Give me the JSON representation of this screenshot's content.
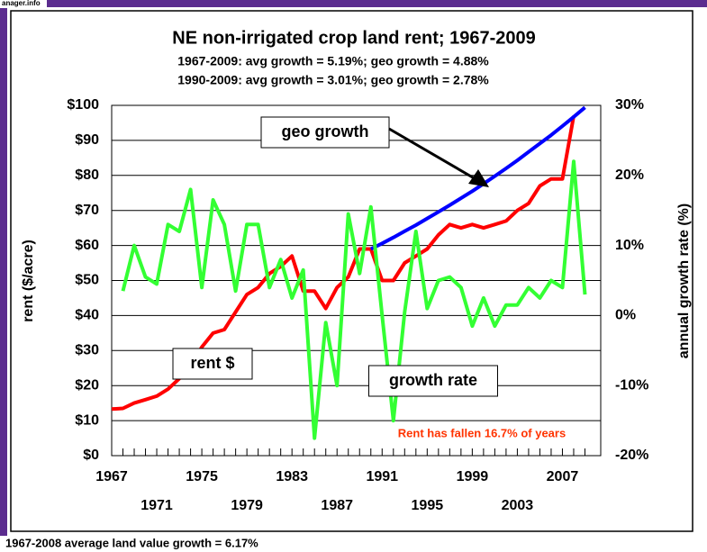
{
  "brand": "anager.info",
  "footer": "1967-2008 average land value growth = 6.17%",
  "chart_data": {
    "type": "line",
    "title": "NE non-irrigated crop land rent; 1967-2009",
    "subtitles": [
      "1967-2009:  avg growth = 5.19%;  geo growth = 4.88%",
      "1990-2009:  avg growth = 3.01%;  geo growth = 2.78%"
    ],
    "y_label": "rent ($/acre)",
    "y2_label": "annual growth rate (%)",
    "annotation": "Rent has fallen 16.7% of years",
    "x": [
      1967,
      1968,
      1969,
      1970,
      1971,
      1972,
      1973,
      1974,
      1975,
      1976,
      1977,
      1978,
      1979,
      1980,
      1981,
      1982,
      1983,
      1984,
      1985,
      1986,
      1987,
      1988,
      1989,
      1990,
      1991,
      1992,
      1993,
      1994,
      1995,
      1996,
      1997,
      1998,
      1999,
      2000,
      2001,
      2002,
      2003,
      2004,
      2005,
      2006,
      2007,
      2008,
      2009
    ],
    "xlim": [
      1967,
      2010.4
    ],
    "xticks": [
      1967,
      1971,
      1975,
      1979,
      1983,
      1987,
      1991,
      1995,
      1999,
      2003,
      2007
    ],
    "ylim": [
      0,
      100
    ],
    "yticks": [
      {
        "value": 0,
        "label": "$0"
      },
      {
        "value": 10,
        "label": "$10"
      },
      {
        "value": 20,
        "label": "$20"
      },
      {
        "value": 30,
        "label": "$30"
      },
      {
        "value": 40,
        "label": "$40"
      },
      {
        "value": 50,
        "label": "$50"
      },
      {
        "value": 60,
        "label": "$60"
      },
      {
        "value": 70,
        "label": "$70"
      },
      {
        "value": 80,
        "label": "$80"
      },
      {
        "value": 90,
        "label": "$90"
      },
      {
        "value": 100,
        "label": "$100"
      }
    ],
    "y2lim": [
      -20,
      30
    ],
    "y2ticks": [
      {
        "value": -20,
        "label": "-20%"
      },
      {
        "value": -10,
        "label": "-10%"
      },
      {
        "value": 0,
        "label": "0%"
      },
      {
        "value": 10,
        "label": "10%"
      },
      {
        "value": 20,
        "label": "20%"
      },
      {
        "value": 30,
        "label": "30%"
      }
    ],
    "grid": true,
    "series": [
      {
        "name": "rent $",
        "color": "#ff0000",
        "values": [
          13.3,
          13.5,
          15,
          16,
          17,
          19,
          22,
          26,
          31,
          35,
          36,
          41,
          46,
          48,
          52,
          54,
          57,
          47,
          47,
          42,
          48,
          51,
          59,
          59,
          50,
          50,
          55,
          57,
          59,
          63,
          66,
          65,
          66,
          65,
          66,
          67,
          70,
          72,
          77,
          79,
          79,
          97,
          null
        ]
      },
      {
        "name": "geo growth",
        "color": "#0000ff",
        "values": [
          null,
          null,
          null,
          null,
          null,
          null,
          null,
          null,
          null,
          null,
          null,
          null,
          null,
          null,
          null,
          null,
          null,
          null,
          null,
          null,
          null,
          null,
          null,
          59,
          60.6,
          62.3,
          64.1,
          65.8,
          67.7,
          69.6,
          71.5,
          73.5,
          75.5,
          77.6,
          79.8,
          82,
          84.3,
          86.7,
          89.1,
          91.5,
          94.1,
          96.7,
          99.4
        ]
      },
      {
        "name": "growth rate",
        "color": "#33ff33",
        "axis": "y2",
        "values": [
          null,
          3.5,
          10,
          5.5,
          4.5,
          13,
          12,
          18,
          4,
          16.5,
          13,
          3.5,
          13,
          13,
          4,
          8,
          2.5,
          6.5,
          -17.5,
          -1,
          -10,
          14.5,
          6,
          15.5,
          0,
          -15,
          0.5,
          12,
          1,
          5,
          5.5,
          4,
          -1.5,
          2.5,
          -1.5,
          1.5,
          1.5,
          4,
          2.5,
          5,
          4,
          22,
          3
        ]
      }
    ]
  }
}
